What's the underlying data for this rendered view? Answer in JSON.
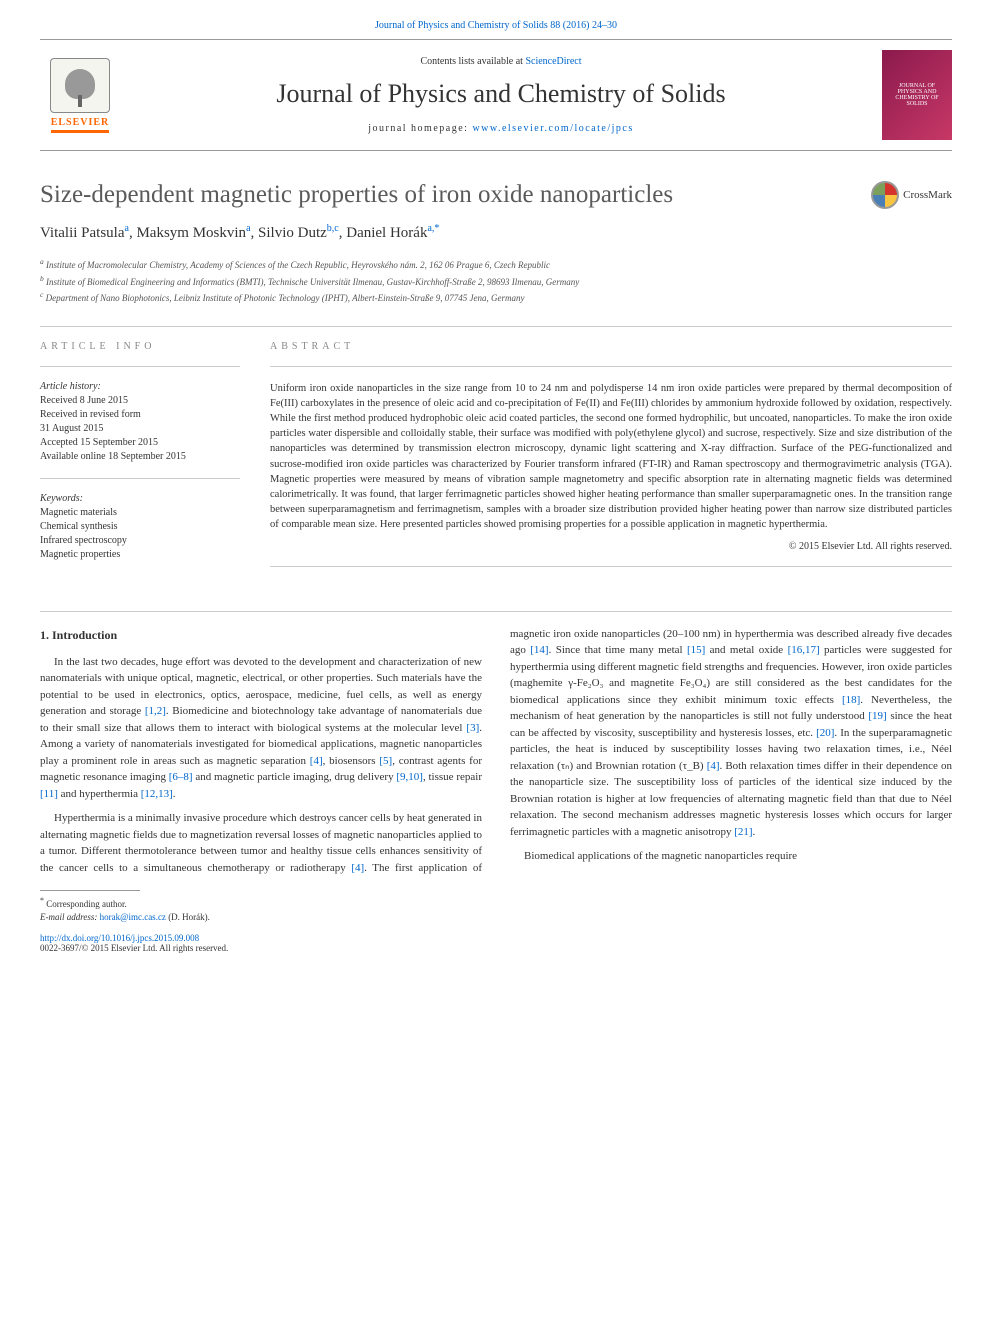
{
  "top_link": {
    "prefix": "",
    "text": "Journal of Physics and Chemistry of Solids 88 (2016) 24–30"
  },
  "header": {
    "elsevier_label": "ELSEVIER",
    "contents_prefix": "Contents lists available at ",
    "contents_link": "ScienceDirect",
    "journal_title": "Journal of Physics and Chemistry of Solids",
    "homepage_prefix": "journal homepage: ",
    "homepage_url": "www.elsevier.com/locate/jpcs",
    "cover_top": "JOURNAL OF PHYSICS AND",
    "cover_bottom": "CHEMISTRY OF SOLIDS"
  },
  "crossmark": "CrossMark",
  "article": {
    "title": "Size-dependent magnetic properties of iron oxide nanoparticles",
    "authors_html": "Vitalii Patsula <sup>a</sup>, Maksym Moskvin <sup>a</sup>, Silvio Dutz <sup>b,c</sup>, Daniel Horák <sup>a,*</sup>",
    "authors": [
      {
        "name": "Vitalii Patsula",
        "aff": "a"
      },
      {
        "name": "Maksym Moskvin",
        "aff": "a"
      },
      {
        "name": "Silvio Dutz",
        "aff": "b,c"
      },
      {
        "name": "Daniel Horák",
        "aff": "a,*"
      }
    ],
    "affiliations": [
      "Institute of Macromolecular Chemistry, Academy of Sciences of the Czech Republic, Heyrovského nám. 2, 162 06 Prague 6, Czech Republic",
      "Institute of Biomedical Engineering and Informatics (BMTI), Technische Universität Ilmenau, Gustav-Kirchhoff-Straße 2, 98693 Ilmenau, Germany",
      "Department of Nano Biophotonics, Leibniz Institute of Photonic Technology (IPHT), Albert-Einstein-Straße 9, 07745 Jena, Germany"
    ],
    "aff_sup": [
      "a",
      "b",
      "c"
    ]
  },
  "info": {
    "heading": "ARTICLE INFO",
    "history_label": "Article history:",
    "history": [
      "Received 8 June 2015",
      "Received in revised form",
      "31 August 2015",
      "Accepted 15 September 2015",
      "Available online 18 September 2015"
    ],
    "keywords_label": "Keywords:",
    "keywords": [
      "Magnetic materials",
      "Chemical synthesis",
      "Infrared spectroscopy",
      "Magnetic properties"
    ]
  },
  "abstract": {
    "heading": "ABSTRACT",
    "text": "Uniform iron oxide nanoparticles in the size range from 10 to 24 nm and polydisperse 14 nm iron oxide particles were prepared by thermal decomposition of Fe(III) carboxylates in the presence of oleic acid and co-precipitation of Fe(II) and Fe(III) chlorides by ammonium hydroxide followed by oxidation, respectively. While the first method produced hydrophobic oleic acid coated particles, the second one formed hydrophilic, but uncoated, nanoparticles. To make the iron oxide particles water dispersible and colloidally stable, their surface was modified with poly(ethylene glycol) and sucrose, respectively. Size and size distribution of the nanoparticles was determined by transmission electron microscopy, dynamic light scattering and X-ray diffraction. Surface of the PEG-functionalized and sucrose-modified iron oxide particles was characterized by Fourier transform infrared (FT-IR) and Raman spectroscopy and thermogravimetric analysis (TGA). Magnetic properties were measured by means of vibration sample magnetometry and specific absorption rate in alternating magnetic fields was determined calorimetrically. It was found, that larger ferrimagnetic particles showed higher heating performance than smaller superparamagnetic ones. In the transition range between superparamagnetism and ferrimagnetism, samples with a broader size distribution provided higher heating power than narrow size distributed particles of comparable mean size. Here presented particles showed promising properties for a possible application in magnetic hyperthermia.",
    "copyright": "© 2015 Elsevier Ltd. All rights reserved."
  },
  "body": {
    "section_heading": "1. Introduction",
    "para1_pre": "In the last two decades, huge effort was devoted to the development and characterization of new nanomaterials with unique optical, magnetic, electrical, or other properties. Such materials have the potential to be used in electronics, optics, aerospace, medicine, fuel cells, as well as energy generation and storage ",
    "ref_1_2": "[1,2]",
    "para1_mid1": ". Biomedicine and biotechnology take advantage of nanomaterials due to their small size that allows them to interact with biological systems at the molecular level ",
    "ref_3": "[3]",
    "para1_mid2": ". Among a variety of nanomaterials investigated for biomedical applications, magnetic nanoparticles play a prominent role in areas such as magnetic separation ",
    "ref_4a": "[4]",
    "para1_mid3": ", biosensors ",
    "ref_5": "[5]",
    "para1_mid4": ", contrast agents for magnetic resonance imaging ",
    "ref_6_8": "[6–8]",
    "para1_mid5": " and magnetic particle imaging, drug delivery ",
    "ref_9_10": "[9,10]",
    "para1_mid6": ", tissue repair ",
    "ref_11": "[11]",
    "para1_mid7": " and hyperthermia ",
    "ref_12_13": "[12,13]",
    "para1_end": ".",
    "para2_pre": "Hyperthermia is a minimally invasive procedure which destroys cancer cells by heat generated in alternating magnetic fields due to magnetization reversal losses of magnetic nanoparticles applied to a tumor. Different thermotolerance between tumor and healthy tissue cells enhances sensitivity of the cancer cells to a simultaneous chemotherapy or radiotherapy ",
    "ref_4b": "[4]",
    "para2_mid1": ". The first application of magnetic iron oxide nanoparticles (20–100 nm) in hyperthermia was described already five decades ago ",
    "ref_14": "[14]",
    "para2_mid2": ". Since that time many metal ",
    "ref_15": "[15]",
    "para2_mid3": " and metal oxide ",
    "ref_16_17": "[16,17]",
    "para2_mid4": " particles were suggested for hyperthermia using different magnetic field strengths and frequencies. However, iron oxide particles (maghemite γ-Fe₂O₃ and magnetite Fe₃O₄) are still considered as the best candidates for the biomedical applications since they exhibit minimum toxic effects ",
    "ref_18": "[18]",
    "para2_mid5": ". Nevertheless, the mechanism of heat generation by the nanoparticles is still not fully understood ",
    "ref_19": "[19]",
    "para2_mid6": " since the heat can be affected by viscosity, susceptibility and hysteresis losses, etc. ",
    "ref_20": "[20]",
    "para2_mid7": ". In the superparamagnetic particles, the heat is induced by susceptibility losses having two relaxation times, i.e., Néel relaxation (τₙ) and Brownian rotation (τ_B) ",
    "ref_4c": "[4]",
    "para2_mid8": ". Both relaxation times differ in their dependence on the nanoparticle size. The susceptibility loss of particles of the identical size induced by the Brownian rotation is higher at low frequencies of alternating magnetic field than that due to Néel relaxation. The second mechanism addresses magnetic hysteresis losses which occurs for larger ferrimagnetic particles with a magnetic anisotropy ",
    "ref_21": "[21]",
    "para2_end": ".",
    "para3": "Biomedical applications of the magnetic nanoparticles require"
  },
  "footnote": {
    "corr_label": "Corresponding author.",
    "email_label": "E-mail address: ",
    "email": "horak@imc.cas.cz",
    "email_suffix": " (D. Horák)."
  },
  "footer": {
    "doi": "http://dx.doi.org/10.1016/j.jpcs.2015.09.008",
    "issn": "0022-3697/© 2015 Elsevier Ltd. All rights reserved."
  },
  "colors": {
    "link": "#0066cc",
    "elsevier_orange": "#ff6600",
    "title_gray": "#5a5a5a",
    "cover_bg1": "#8b1a4d",
    "cover_bg2": "#c73866"
  }
}
